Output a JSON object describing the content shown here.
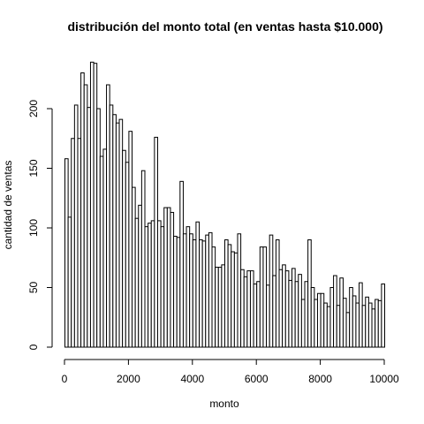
{
  "chart_data": {
    "type": "bar",
    "title": "distribución del monto total (en ventas hasta $10.000)",
    "xlabel": "monto",
    "ylabel": "cantidad de ventas",
    "xlim": [
      0,
      10000
    ],
    "ylim": [
      0,
      240
    ],
    "bin_width": 100,
    "x_ticks": [
      0,
      2000,
      4000,
      6000,
      8000,
      10000
    ],
    "x_tick_labels": [
      "0",
      "2000",
      "4000",
      "6000",
      "8000",
      "10000"
    ],
    "y_ticks": [
      0,
      50,
      100,
      150,
      200
    ],
    "y_tick_labels": [
      "0",
      "50",
      "100",
      "150",
      "200"
    ],
    "values": [
      158,
      109,
      175,
      203,
      175,
      230,
      220,
      201,
      239,
      238,
      200,
      160,
      166,
      220,
      203,
      195,
      188,
      191,
      165,
      155,
      181,
      134,
      108,
      119,
      148,
      101,
      104,
      106,
      176,
      106,
      101,
      117,
      117,
      113,
      93,
      92,
      139,
      95,
      101,
      95,
      90,
      105,
      90,
      89,
      94,
      96,
      84,
      67,
      67,
      69,
      90,
      86,
      80,
      79,
      95,
      65,
      59,
      64,
      64,
      53,
      55,
      84,
      84,
      52,
      94,
      60,
      90,
      65,
      69,
      64,
      56,
      66,
      55,
      61,
      40,
      55,
      90,
      50,
      40,
      45,
      45,
      37,
      34,
      50,
      60,
      35,
      58,
      41,
      29,
      50,
      43,
      37,
      54,
      35,
      42,
      37,
      32,
      40,
      39,
      53
    ],
    "grid": false,
    "legend": "none"
  }
}
